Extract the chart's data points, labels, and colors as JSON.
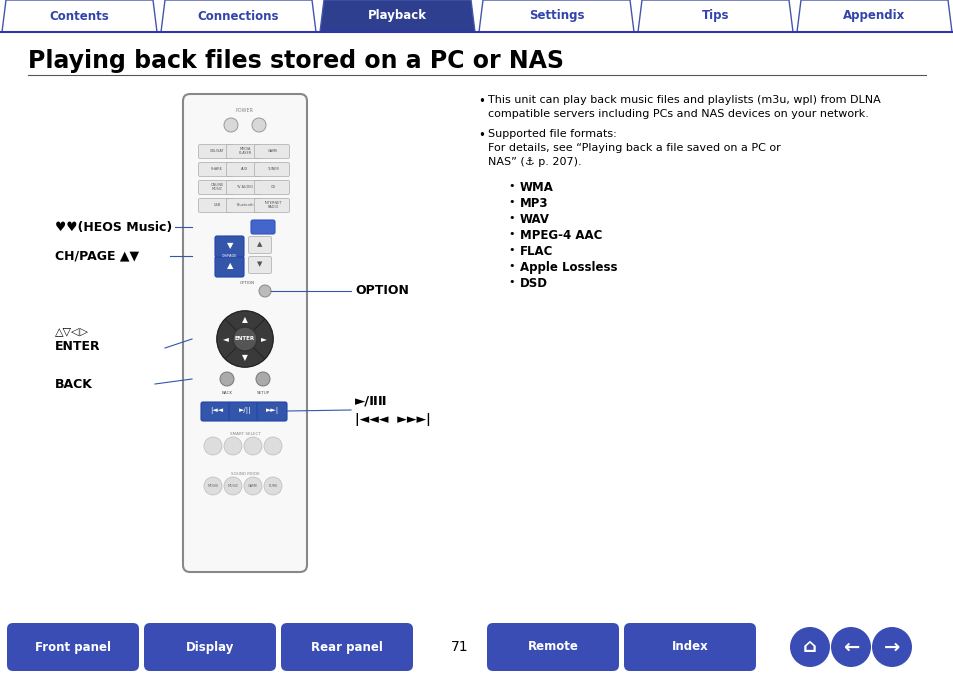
{
  "title": "Playing back files stored on a PC or NAS",
  "tab_labels": [
    "Contents",
    "Connections",
    "Playback",
    "Settings",
    "Tips",
    "Appendix"
  ],
  "active_tab": 2,
  "tab_color_active": "#2e3f8f",
  "tab_color_inactive": "#ffffff",
  "tab_border_color": "#4455aa",
  "tab_text_active": "#ffffff",
  "tab_text_inactive": "#3344aa",
  "bullet1_line1": "This unit can play back music files and playlists (m3u, wpl) from DLNA",
  "bullet1_line2": "compatible servers including PCs and NAS devices on your network.",
  "bullet2_title": "Supported file formats:",
  "bullet2_line1": "For details, see “Playing back a file saved on a PC or",
  "bullet2_line2": "NAS” (⚓ p. 207).",
  "formats": [
    "WMA",
    "MP3",
    "WAV",
    "MPEG-4 AAC",
    "FLAC",
    "Apple Lossless",
    "DSD"
  ],
  "label_heos": "♥♥(HEOS Music)",
  "label_chpage": "CH/PAGE ▲▼",
  "label_enter_arrows": "△▽◁▷",
  "label_enter": "ENTER",
  "label_back": "BACK",
  "label_option": "OPTION",
  "label_play": "►/Ⅱ",
  "label_skip_line1": "◄◄◄  ►►►▮",
  "bottom_buttons": [
    "Front panel",
    "Display",
    "Rear panel",
    "Remote",
    "Index"
  ],
  "page_number": "71",
  "btn_color_gradient_top": "#5566cc",
  "btn_color": "#3a4db5",
  "btn_text_color": "#ffffff",
  "bg_color": "#ffffff",
  "body_text_color": "#000000",
  "remote_border": "#888888",
  "remote_fill": "#f8f8f8",
  "blue_line_color": "#3333aa"
}
